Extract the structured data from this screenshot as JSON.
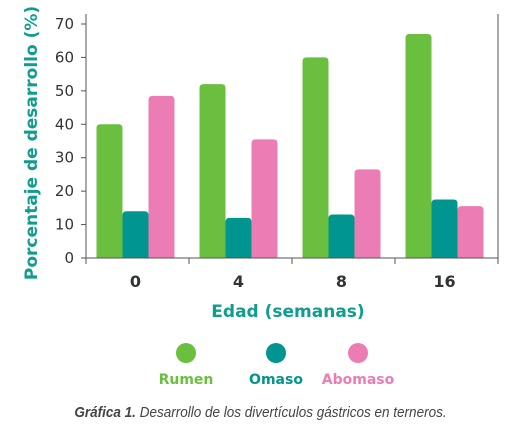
{
  "chart_data": {
    "type": "bar",
    "xlabel": "Edad (semanas)",
    "ylabel": "Porcentaje de desarrollo (%)",
    "ylim": [
      0,
      70
    ],
    "yticks": [
      0,
      10,
      20,
      30,
      40,
      50,
      60,
      70
    ],
    "categories": [
      "0",
      "4",
      "8",
      "16"
    ],
    "series": [
      {
        "name": "Rumen",
        "color": "#6bbf3f",
        "values": [
          40,
          52,
          60,
          67
        ]
      },
      {
        "name": "Omaso",
        "color": "#00968f",
        "values": [
          14,
          12,
          13,
          17.5
        ]
      },
      {
        "name": "Abomaso",
        "color": "#ec7db4",
        "values": [
          48.5,
          35.5,
          26.5,
          15.5
        ]
      }
    ],
    "legend_position": "bottom",
    "grid": false
  },
  "caption": {
    "label": "Gráfica 1.",
    "text": "Desarrollo de los divertículos gástricos en terneros."
  }
}
